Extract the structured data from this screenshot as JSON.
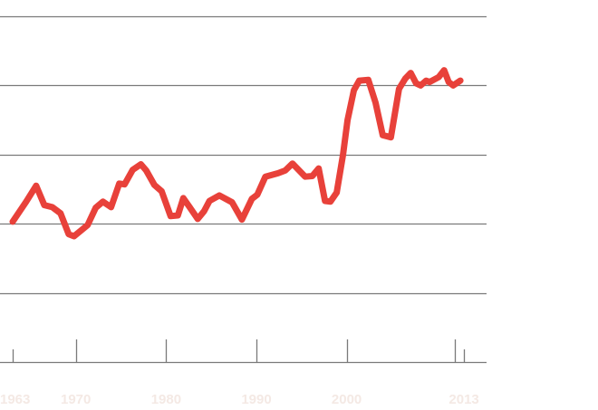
{
  "chart_data": {
    "type": "line",
    "title": "",
    "xlabel": "",
    "ylabel": "",
    "xlim": [
      1963,
      2015.5
    ],
    "ylim": [
      0,
      5
    ],
    "grid_y": [
      1,
      2,
      3,
      4,
      5
    ],
    "x_ticks": [
      1963,
      1970,
      1980,
      1990,
      2000,
      2013
    ],
    "x_tick_labels": [
      "1963",
      "1970",
      "1980",
      "1990",
      "2000",
      "2013"
    ],
    "extra_x_ticks": [
      2012
    ],
    "colors": {
      "line": "#e8413a",
      "grid": "#7a7a7a",
      "tick_label": "#f4e9e4"
    },
    "series": [
      {
        "x": [
          1963,
          1964.5,
          1965.6,
          1966.5,
          1967.4,
          1968.3,
          1969.2,
          1969.8,
          1971.3,
          1972.2,
          1973.0,
          1973.9,
          1974.8,
          1975.4,
          1976.3,
          1977.2,
          1977.8,
          1978.7,
          1979.5,
          1980.5,
          1981.3,
          1981.9,
          1982.6,
          1983.5,
          1984.2,
          1984.8,
          1985.9,
          1987.3,
          1988.4,
          1989.5,
          1990.1,
          1991.0,
          1992.4,
          1993.2,
          1994.0,
          1995.4,
          1996.2,
          1996.9,
          1997.6,
          1998.2,
          1998.9,
          1999.6,
          2000.1,
          2000.8,
          2001.4,
          2002.4,
          2003.2,
          2004.0,
          2004.9,
          2005.8,
          2006.5,
          2007.1,
          2007.7,
          2008.2,
          2008.8,
          2009.2,
          2010.2,
          2010.8,
          2011.3,
          2011.8,
          2012.6
        ],
        "values": [
          2.03,
          2.32,
          2.55,
          2.27,
          2.24,
          2.15,
          1.85,
          1.82,
          1.98,
          2.23,
          2.32,
          2.24,
          2.58,
          2.57,
          2.78,
          2.86,
          2.77,
          2.56,
          2.47,
          2.11,
          2.12,
          2.37,
          2.24,
          2.07,
          2.18,
          2.33,
          2.41,
          2.31,
          2.06,
          2.36,
          2.42,
          2.68,
          2.73,
          2.77,
          2.87,
          2.68,
          2.69,
          2.8,
          2.33,
          2.32,
          2.45,
          3.0,
          3.5,
          3.93,
          4.07,
          4.08,
          3.75,
          3.28,
          3.25,
          3.95,
          4.1,
          4.18,
          4.03,
          4.0,
          4.07,
          4.05,
          4.12,
          4.22,
          4.05,
          4.0,
          4.07
        ]
      }
    ]
  }
}
